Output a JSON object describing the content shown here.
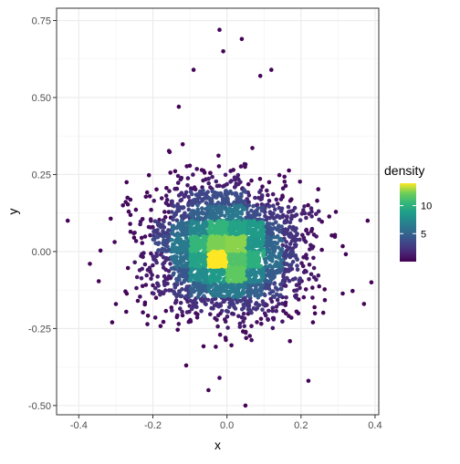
{
  "chart_data": {
    "type": "scatter",
    "xlabel": "x",
    "ylabel": "y",
    "xlim": [
      -0.46,
      0.41
    ],
    "ylim": [
      -0.53,
      0.79
    ],
    "x_ticks": [
      -0.4,
      -0.2,
      0.0,
      0.2,
      0.4
    ],
    "x_tick_labels": [
      "-0.4",
      "-0.2",
      "0.0",
      "0.2",
      "0.4"
    ],
    "y_ticks": [
      -0.5,
      -0.25,
      0.0,
      0.25,
      0.5,
      0.75
    ],
    "y_tick_labels": [
      "-0.50",
      "-0.25",
      "0.00",
      "0.25",
      "0.50",
      "0.75"
    ],
    "grid": true,
    "legend": {
      "title": "density",
      "position": "right",
      "range": [
        0,
        14
      ],
      "ticks": [
        5,
        10
      ],
      "tick_labels": [
        "5",
        "10"
      ],
      "colormap": "viridis"
    },
    "n_points": 3200,
    "distribution": {
      "x_mean": 0.0,
      "x_sd": 0.1,
      "y_mean": 0.0,
      "y_sd": 0.1
    },
    "density_grid_step": 0.05,
    "density_max": 14,
    "outlier_points": [
      {
        "x": -0.43,
        "y": 0.1
      },
      {
        "x": 0.38,
        "y": 0.1
      },
      {
        "x": 0.39,
        "y": -0.1
      },
      {
        "x": 0.37,
        "y": -0.17
      },
      {
        "x": -0.31,
        "y": -0.23
      },
      {
        "x": -0.37,
        "y": -0.04
      },
      {
        "x": -0.02,
        "y": 0.72
      },
      {
        "x": 0.04,
        "y": 0.69
      },
      {
        "x": -0.05,
        "y": -0.45
      },
      {
        "x": 0.05,
        "y": -0.5
      },
      {
        "x": -0.13,
        "y": 0.47
      },
      {
        "x": 0.09,
        "y": 0.57
      },
      {
        "x": -0.09,
        "y": 0.59
      },
      {
        "x": 0.12,
        "y": 0.59
      },
      {
        "x": -0.01,
        "y": 0.65
      },
      {
        "x": 0.22,
        "y": -0.42
      },
      {
        "x": -0.02,
        "y": -0.41
      },
      {
        "x": -0.11,
        "y": -0.37
      }
    ]
  }
}
